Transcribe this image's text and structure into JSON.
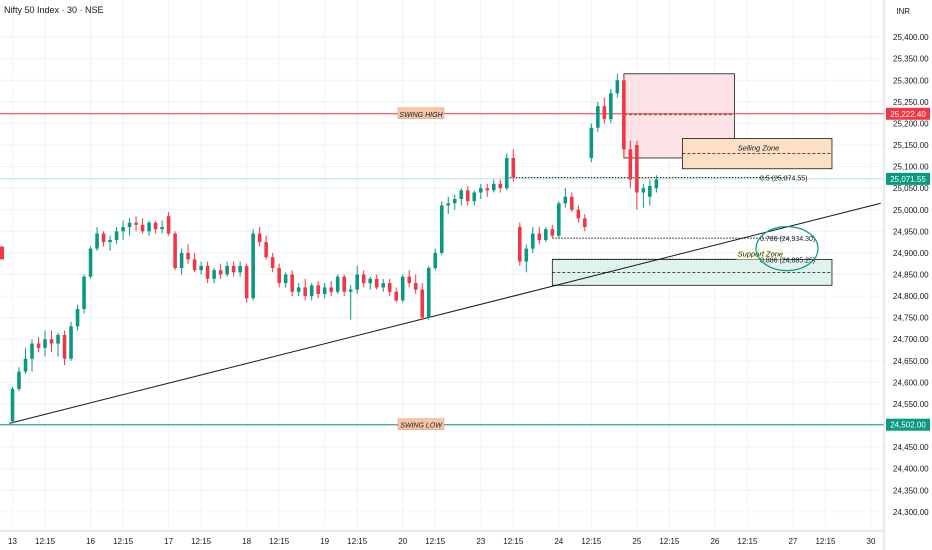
{
  "header": {
    "title": "Nifty 50 Index · 30 · NSE",
    "currency": "INR"
  },
  "colors": {
    "up": "#089981",
    "down": "#f23645",
    "resistance_line": "#f23645",
    "support_line": "#089981",
    "current_line": "#26a69a",
    "selling_zone_fill": "#fde0c4",
    "support_zone_fill": "#dff2ec",
    "swing_label_fill": "#f7c6a6",
    "upper_box_fill": "#fde3e5"
  },
  "chart_data": {
    "type": "candlestick",
    "title": "",
    "xlabel": "",
    "ylabel": "",
    "x_range": [
      0,
      135
    ],
    "ylim": [
      24265,
      25435
    ],
    "y_ticks": [
      "25,400.00",
      "25,350.00",
      "25,300.00",
      "25,250.00",
      "25,200.00",
      "25,150.00",
      "25,100.00",
      "25,050.00",
      "25,000.00",
      "24,950.00",
      "24,900.00",
      "24,850.00",
      "24,800.00",
      "24,750.00",
      "24,700.00",
      "24,650.00",
      "24,600.00",
      "24,550.00",
      "24,500.00",
      "24,450.00",
      "24,400.00",
      "24,350.00",
      "24,300.00"
    ],
    "x_ticks": [
      {
        "at": 1,
        "label": "13"
      },
      {
        "at": 6,
        "label": "12:15"
      },
      {
        "at": 13,
        "label": "16"
      },
      {
        "at": 18,
        "label": "12:15"
      },
      {
        "at": 25,
        "label": "17"
      },
      {
        "at": 30,
        "label": "12:15"
      },
      {
        "at": 37,
        "label": "18"
      },
      {
        "at": 42,
        "label": "12:15"
      },
      {
        "at": 49,
        "label": "19"
      },
      {
        "at": 54,
        "label": "12:15"
      },
      {
        "at": 61,
        "label": "20"
      },
      {
        "at": 66,
        "label": "12:15"
      },
      {
        "at": 73,
        "label": "23"
      },
      {
        "at": 78,
        "label": "12:15"
      },
      {
        "at": 85,
        "label": "24"
      },
      {
        "at": 90,
        "label": "12:15"
      },
      {
        "at": 97,
        "label": "25"
      },
      {
        "at": 102,
        "label": "12:15"
      },
      {
        "at": 109,
        "label": "26"
      },
      {
        "at": 114,
        "label": "12:15"
      },
      {
        "at": 121,
        "label": "27"
      },
      {
        "at": 126,
        "label": "12:15"
      },
      {
        "at": 133,
        "label": "30"
      }
    ],
    "candles": [
      {
        "o": 24510,
        "h": 24590,
        "l": 24505,
        "c": 24585
      },
      {
        "o": 24585,
        "h": 24635,
        "l": 24580,
        "c": 24625
      },
      {
        "o": 24625,
        "h": 24680,
        "l": 24620,
        "c": 24655
      },
      {
        "o": 24655,
        "h": 24700,
        "l": 24625,
        "c": 24690
      },
      {
        "o": 24690,
        "h": 24705,
        "l": 24670,
        "c": 24680
      },
      {
        "o": 24680,
        "h": 24720,
        "l": 24660,
        "c": 24700
      },
      {
        "o": 24700,
        "h": 24720,
        "l": 24670,
        "c": 24690
      },
      {
        "o": 24690,
        "h": 24715,
        "l": 24660,
        "c": 24710
      },
      {
        "o": 24710,
        "h": 24720,
        "l": 24640,
        "c": 24655
      },
      {
        "o": 24655,
        "h": 24740,
        "l": 24650,
        "c": 24730
      },
      {
        "o": 24730,
        "h": 24780,
        "l": 24720,
        "c": 24770
      },
      {
        "o": 24770,
        "h": 24850,
        "l": 24760,
        "c": 24845
      },
      {
        "o": 24845,
        "h": 24915,
        "l": 24840,
        "c": 24910
      },
      {
        "o": 24910,
        "h": 24960,
        "l": 24905,
        "c": 24945
      },
      {
        "o": 24945,
        "h": 24950,
        "l": 24915,
        "c": 24925
      },
      {
        "o": 24925,
        "h": 24940,
        "l": 24905,
        "c": 24930
      },
      {
        "o": 24930,
        "h": 24960,
        "l": 24920,
        "c": 24950
      },
      {
        "o": 24950,
        "h": 24975,
        "l": 24930,
        "c": 24960
      },
      {
        "o": 24960,
        "h": 24980,
        "l": 24940,
        "c": 24970
      },
      {
        "o": 24970,
        "h": 24985,
        "l": 24950,
        "c": 24965
      },
      {
        "o": 24965,
        "h": 24980,
        "l": 24945,
        "c": 24950
      },
      {
        "o": 24950,
        "h": 24975,
        "l": 24940,
        "c": 24970
      },
      {
        "o": 24970,
        "h": 24975,
        "l": 24945,
        "c": 24955
      },
      {
        "o": 24955,
        "h": 24975,
        "l": 24945,
        "c": 24960
      },
      {
        "o": 24985,
        "h": 24995,
        "l": 24940,
        "c": 24945
      },
      {
        "o": 24945,
        "h": 24950,
        "l": 24860,
        "c": 24865
      },
      {
        "o": 24865,
        "h": 24910,
        "l": 24850,
        "c": 24900
      },
      {
        "o": 24900,
        "h": 24920,
        "l": 24875,
        "c": 24885
      },
      {
        "o": 24885,
        "h": 24900,
        "l": 24855,
        "c": 24860
      },
      {
        "o": 24860,
        "h": 24880,
        "l": 24850,
        "c": 24870
      },
      {
        "o": 24870,
        "h": 24880,
        "l": 24830,
        "c": 24840
      },
      {
        "o": 24840,
        "h": 24865,
        "l": 24830,
        "c": 24860
      },
      {
        "o": 24860,
        "h": 24875,
        "l": 24840,
        "c": 24850
      },
      {
        "o": 24850,
        "h": 24880,
        "l": 24845,
        "c": 24870
      },
      {
        "o": 24870,
        "h": 24880,
        "l": 24845,
        "c": 24855
      },
      {
        "o": 24855,
        "h": 24880,
        "l": 24845,
        "c": 24870
      },
      {
        "o": 24870,
        "h": 24875,
        "l": 24785,
        "c": 24795
      },
      {
        "o": 24795,
        "h": 24955,
        "l": 24790,
        "c": 24945
      },
      {
        "o": 24945,
        "h": 24960,
        "l": 24915,
        "c": 24925
      },
      {
        "o": 24925,
        "h": 24940,
        "l": 24885,
        "c": 24890
      },
      {
        "o": 24890,
        "h": 24900,
        "l": 24855,
        "c": 24865
      },
      {
        "o": 24865,
        "h": 24875,
        "l": 24820,
        "c": 24830
      },
      {
        "o": 24830,
        "h": 24855,
        "l": 24820,
        "c": 24850
      },
      {
        "o": 24850,
        "h": 24860,
        "l": 24800,
        "c": 24810
      },
      {
        "o": 24810,
        "h": 24830,
        "l": 24800,
        "c": 24820
      },
      {
        "o": 24820,
        "h": 24840,
        "l": 24790,
        "c": 24800
      },
      {
        "o": 24800,
        "h": 24830,
        "l": 24790,
        "c": 24825
      },
      {
        "o": 24825,
        "h": 24835,
        "l": 24795,
        "c": 24805
      },
      {
        "o": 24805,
        "h": 24830,
        "l": 24795,
        "c": 24820
      },
      {
        "o": 24820,
        "h": 24835,
        "l": 24800,
        "c": 24810
      },
      {
        "o": 24810,
        "h": 24850,
        "l": 24805,
        "c": 24845
      },
      {
        "o": 24845,
        "h": 24850,
        "l": 24800,
        "c": 24810
      },
      {
        "o": 24810,
        "h": 24825,
        "l": 24745,
        "c": 24815
      },
      {
        "o": 24815,
        "h": 24870,
        "l": 24805,
        "c": 24850
      },
      {
        "o": 24850,
        "h": 24860,
        "l": 24820,
        "c": 24830
      },
      {
        "o": 24830,
        "h": 24845,
        "l": 24815,
        "c": 24840
      },
      {
        "o": 24840,
        "h": 24850,
        "l": 24815,
        "c": 24820
      },
      {
        "o": 24820,
        "h": 24840,
        "l": 24810,
        "c": 24830
      },
      {
        "o": 24830,
        "h": 24840,
        "l": 24800,
        "c": 24810
      },
      {
        "o": 24810,
        "h": 24820,
        "l": 24785,
        "c": 24790
      },
      {
        "o": 24790,
        "h": 24850,
        "l": 24785,
        "c": 24845
      },
      {
        "o": 24845,
        "h": 24860,
        "l": 24820,
        "c": 24830
      },
      {
        "o": 24830,
        "h": 24850,
        "l": 24805,
        "c": 24815
      },
      {
        "o": 24815,
        "h": 24830,
        "l": 24745,
        "c": 24750
      },
      {
        "o": 24750,
        "h": 24870,
        "l": 24745,
        "c": 24865
      },
      {
        "o": 24865,
        "h": 24910,
        "l": 24860,
        "c": 24900
      },
      {
        "o": 24900,
        "h": 25020,
        "l": 24895,
        "c": 25010
      },
      {
        "o": 25010,
        "h": 25030,
        "l": 24990,
        "c": 25015
      },
      {
        "o": 25015,
        "h": 25035,
        "l": 25000,
        "c": 25025
      },
      {
        "o": 25025,
        "h": 25050,
        "l": 25010,
        "c": 25045
      },
      {
        "o": 25045,
        "h": 25055,
        "l": 25010,
        "c": 25020
      },
      {
        "o": 25020,
        "h": 25045,
        "l": 25010,
        "c": 25040
      },
      {
        "o": 25040,
        "h": 25060,
        "l": 25025,
        "c": 25050
      },
      {
        "o": 25050,
        "h": 25060,
        "l": 25030,
        "c": 25045
      },
      {
        "o": 25045,
        "h": 25070,
        "l": 25040,
        "c": 25060
      },
      {
        "o": 25060,
        "h": 25070,
        "l": 25040,
        "c": 25050
      },
      {
        "o": 25050,
        "h": 25130,
        "l": 25045,
        "c": 25120
      },
      {
        "o": 25120,
        "h": 25140,
        "l": 25065,
        "c": 25075
      },
      {
        "o": 24960,
        "h": 24970,
        "l": 24870,
        "c": 24880
      },
      {
        "o": 24880,
        "h": 24920,
        "l": 24855,
        "c": 24910
      },
      {
        "o": 24910,
        "h": 24960,
        "l": 24900,
        "c": 24945
      },
      {
        "o": 24945,
        "h": 24960,
        "l": 24920,
        "c": 24930
      },
      {
        "o": 24930,
        "h": 24960,
        "l": 24925,
        "c": 24955
      },
      {
        "o": 24955,
        "h": 24965,
        "l": 24935,
        "c": 24940
      },
      {
        "o": 24940,
        "h": 25020,
        "l": 24935,
        "c": 25015
      },
      {
        "o": 25015,
        "h": 25050,
        "l": 25005,
        "c": 25030
      },
      {
        "o": 25030,
        "h": 25040,
        "l": 24995,
        "c": 25000
      },
      {
        "o": 25000,
        "h": 25010,
        "l": 24970,
        "c": 24980
      },
      {
        "o": 24980,
        "h": 24990,
        "l": 24950,
        "c": 24960
      },
      {
        "o": 25120,
        "h": 25200,
        "l": 25110,
        "c": 25190
      },
      {
        "o": 25190,
        "h": 25250,
        "l": 25180,
        "c": 25240
      },
      {
        "o": 25240,
        "h": 25260,
        "l": 25200,
        "c": 25210
      },
      {
        "o": 25210,
        "h": 25280,
        "l": 25200,
        "c": 25270
      },
      {
        "o": 25270,
        "h": 25315,
        "l": 25260,
        "c": 25300
      },
      {
        "o": 25300,
        "h": 25310,
        "l": 25120,
        "c": 25140
      },
      {
        "o": 25140,
        "h": 25160,
        "l": 25050,
        "c": 25070
      },
      {
        "o": 25150,
        "h": 25160,
        "l": 25000,
        "c": 25040
      },
      {
        "o": 25040,
        "h": 25060,
        "l": 25005,
        "c": 25050
      },
      {
        "o": 25030,
        "h": 25070,
        "l": 25010,
        "c": 25055
      },
      {
        "o": 25050,
        "h": 25080,
        "l": 25040,
        "c": 25070
      }
    ],
    "levels": {
      "swing_high": {
        "label": "SWING HIGH",
        "value": 25222.4,
        "price_label": "25,222.40"
      },
      "swing_low": {
        "label": "SWING LOW",
        "value": 24502.0,
        "price_label": "24,502.00"
      },
      "current": {
        "value": 25071.55,
        "price_label": "25,071.55"
      }
    },
    "fib_levels": [
      {
        "label": "0.5 (25,074.55)",
        "value": 25074.55
      },
      {
        "label": "0.786 (24,934.30)",
        "value": 24934.3
      },
      {
        "label": "0.886 (24,885.25)",
        "value": 24885.25
      }
    ],
    "zones": {
      "upper_box": {
        "x0": 95,
        "x1": 112,
        "y_top": 25315,
        "y_bottom": 25120
      },
      "selling": {
        "label": "Selling Zone",
        "x0": 104,
        "x1": 127,
        "y_top": 25165,
        "y_bottom": 25095
      },
      "support": {
        "label": "Support Zone",
        "x0": 84,
        "x1": 127,
        "y_top": 24885,
        "y_bottom": 24825
      }
    },
    "trendline": {
      "x0": 0.5,
      "y0": 24505,
      "x1": 134.5,
      "y1": 25015
    }
  }
}
